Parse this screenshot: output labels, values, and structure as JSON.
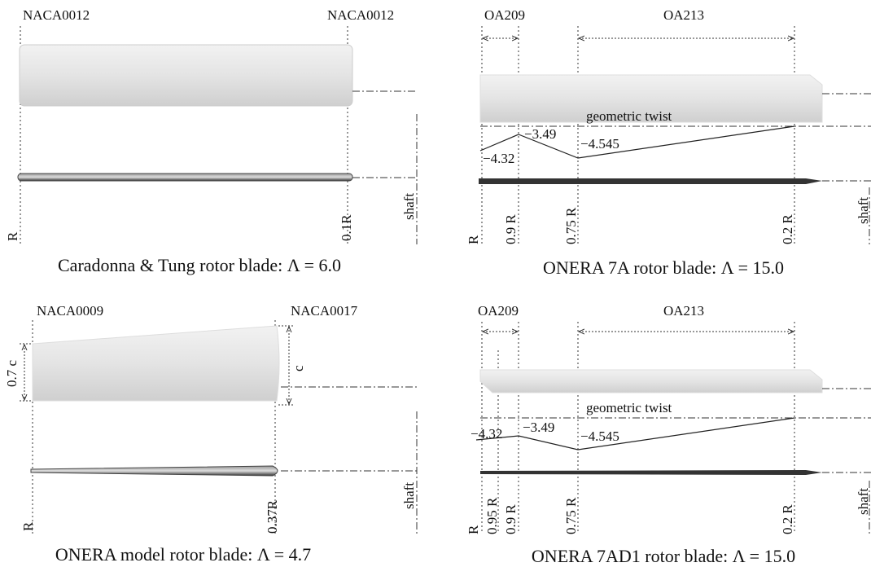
{
  "panels": [
    {
      "sections": [
        "NACA0012",
        "NACA0012"
      ],
      "shaft": "shaft",
      "stations": [
        "R",
        "0.1R"
      ],
      "caption": "Caradonna & Tung rotor blade: Λ = 6.0"
    },
    {
      "sections": [
        "OA209",
        "OA213"
      ],
      "twist_label": "geometric twist",
      "twist_values": [
        "−4.32",
        "−3.49",
        "−4.545"
      ],
      "shaft": "shaft",
      "stations": [
        "R",
        "0.9 R",
        "0.75 R",
        "0.2 R"
      ],
      "caption": "ONERA 7A rotor blade: Λ = 15.0"
    },
    {
      "sections": [
        "NACA0009",
        "NACA0017"
      ],
      "chords": [
        "0.7 c",
        "c"
      ],
      "shaft": "shaft",
      "stations": [
        "R",
        "0.37R"
      ],
      "caption": "ONERA model rotor blade: Λ = 4.7"
    },
    {
      "sections": [
        "OA209",
        "OA213"
      ],
      "twist_label": "geometric twist",
      "twist_values": [
        "−4.32",
        "−3.49",
        "−4.545"
      ],
      "shaft": "shaft",
      "stations": [
        "R",
        "0.95 R",
        "0.9 R",
        "0.75 R",
        "0.2 R"
      ],
      "caption": "ONERA 7AD1 rotor blade: Λ = 15.0"
    }
  ]
}
